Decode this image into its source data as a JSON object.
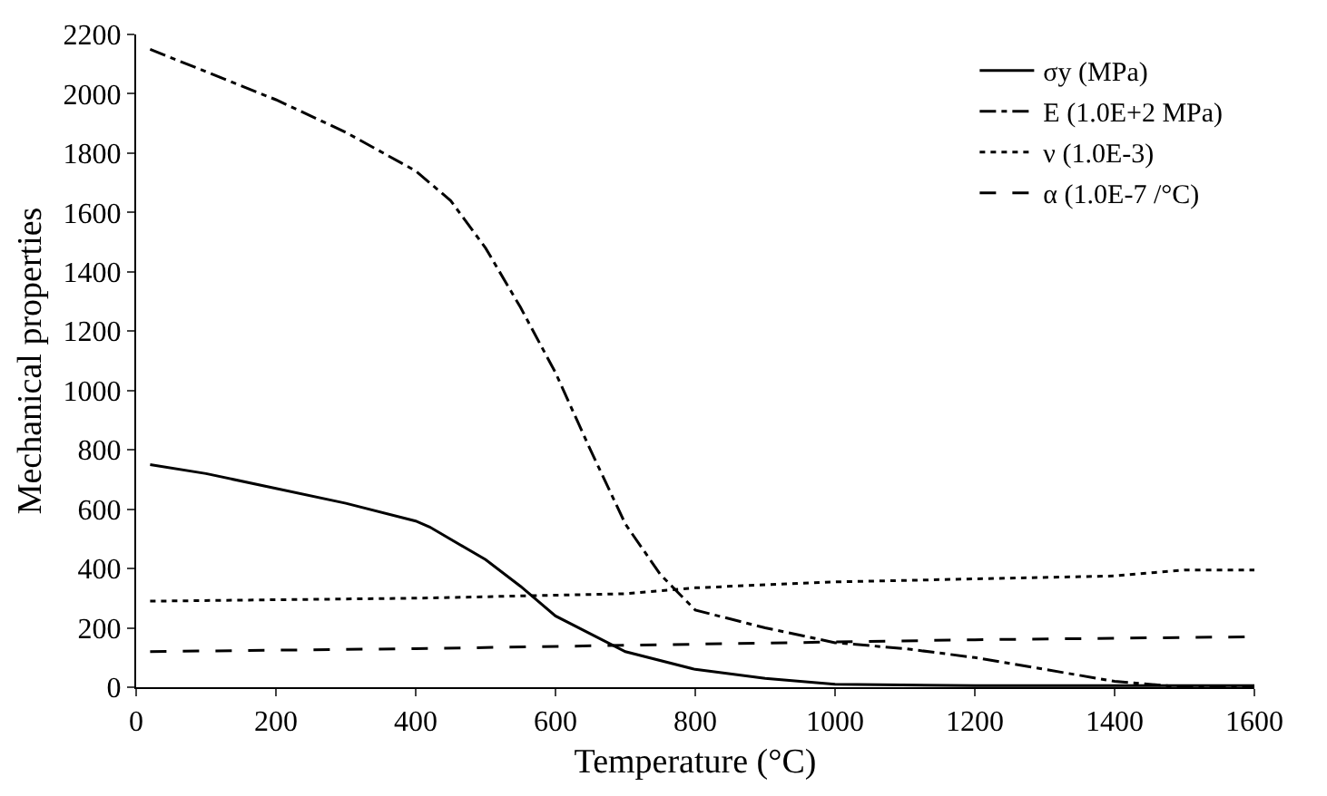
{
  "chart_data": {
    "type": "line",
    "xlabel": "Temperature (°C)",
    "ylabel": "Mechanical properties",
    "xlim": [
      0,
      1600
    ],
    "xticks": [
      0,
      200,
      400,
      600,
      800,
      1000,
      1200,
      1400,
      1600
    ],
    "ylim": [
      0,
      2200
    ],
    "yticks": [
      0,
      200,
      400,
      600,
      800,
      1000,
      1200,
      1400,
      1600,
      1800,
      2000,
      2200
    ],
    "legend": "top right",
    "marker": "none",
    "series": [
      {
        "name": "σy (MPa)",
        "color": "#000000",
        "line_style": "solid",
        "x": [
          20,
          100,
          200,
          300,
          400,
          420,
          500,
          550,
          600,
          700,
          800,
          900,
          1000,
          1200,
          1600
        ],
        "values": [
          750,
          720,
          670,
          620,
          560,
          540,
          430,
          340,
          240,
          120,
          60,
          30,
          10,
          5,
          5
        ]
      },
      {
        "name": "E (1.0E+2 MPa)",
        "color": "#000000",
        "line_style": "dashdot",
        "x": [
          20,
          200,
          300,
          400,
          450,
          500,
          550,
          600,
          650,
          700,
          750,
          800,
          900,
          1000,
          1100,
          1200,
          1300,
          1400,
          1500,
          1600
        ],
        "values": [
          2150,
          1980,
          1870,
          1740,
          1640,
          1480,
          1280,
          1060,
          800,
          550,
          380,
          260,
          200,
          150,
          130,
          100,
          60,
          20,
          0,
          0
        ]
      },
      {
        "name": "ν (1.0E-3)",
        "color": "#000000",
        "line_style": "dotted",
        "x": [
          20,
          400,
          700,
          800,
          1000,
          1200,
          1400,
          1500,
          1600
        ],
        "values": [
          290,
          300,
          315,
          335,
          355,
          365,
          375,
          395,
          395
        ]
      },
      {
        "name": "α (1.0E-7 /°C)",
        "color": "#000000",
        "line_style": "dashed",
        "x": [
          20,
          400,
          800,
          1200,
          1600
        ],
        "values": [
          120,
          130,
          145,
          160,
          170
        ]
      }
    ]
  }
}
